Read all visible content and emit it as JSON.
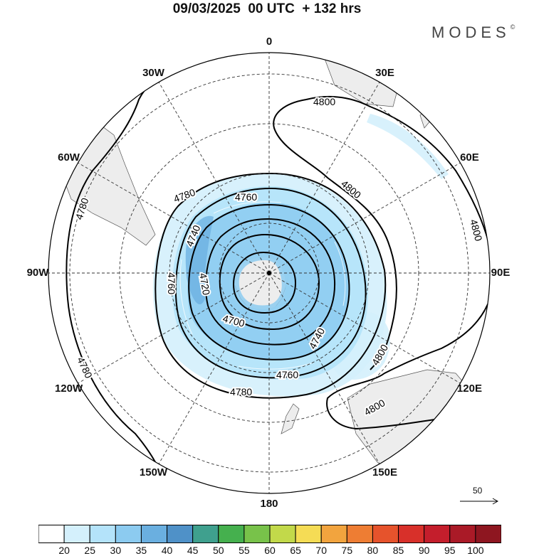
{
  "header": {
    "title": "09/03/2025  00 UTC  + 132 hrs",
    "brand": "MODES",
    "brand_mark": "©"
  },
  "longitude_labels": [
    {
      "text": "0",
      "lon": 0
    },
    {
      "text": "30E",
      "lon": 30
    },
    {
      "text": "60E",
      "lon": 60
    },
    {
      "text": "90E",
      "lon": 90
    },
    {
      "text": "120E",
      "lon": 120
    },
    {
      "text": "150E",
      "lon": 150
    },
    {
      "text": "180",
      "lon": 180
    },
    {
      "text": "150W",
      "lon": -150
    },
    {
      "text": "120W",
      "lon": -120
    },
    {
      "text": "90W",
      "lon": -90
    },
    {
      "text": "60W",
      "lon": -60
    },
    {
      "text": "30W",
      "lon": -30
    }
  ],
  "contours": {
    "labels": [
      {
        "text": "4800"
      },
      {
        "text": "4800"
      },
      {
        "text": "4800"
      },
      {
        "text": "4800"
      },
      {
        "text": "4800"
      },
      {
        "text": "4780"
      },
      {
        "text": "4780"
      },
      {
        "text": "4780"
      },
      {
        "text": "4780"
      },
      {
        "text": "4760"
      },
      {
        "text": "4760"
      },
      {
        "text": "4760"
      },
      {
        "text": "4740"
      },
      {
        "text": "4740"
      },
      {
        "text": "4720"
      },
      {
        "text": "4700"
      }
    ]
  },
  "wind_reference": {
    "label": "50"
  },
  "colorbar": {
    "colors": [
      "#ffffff",
      "#d4f0fc",
      "#b4e3fa",
      "#8ccbf0",
      "#6aafe0",
      "#4f91c8",
      "#3fa08e",
      "#45b04e",
      "#78c24a",
      "#c2d94a",
      "#f5dc55",
      "#f2a43e",
      "#ee7d33",
      "#e6532c",
      "#d8302a",
      "#c41e2c",
      "#aa1a27",
      "#8e1620"
    ],
    "labels": [
      "20",
      "25",
      "30",
      "35",
      "40",
      "45",
      "50",
      "55",
      "60",
      "65",
      "70",
      "75",
      "80",
      "85",
      "90",
      "95",
      "100"
    ]
  }
}
